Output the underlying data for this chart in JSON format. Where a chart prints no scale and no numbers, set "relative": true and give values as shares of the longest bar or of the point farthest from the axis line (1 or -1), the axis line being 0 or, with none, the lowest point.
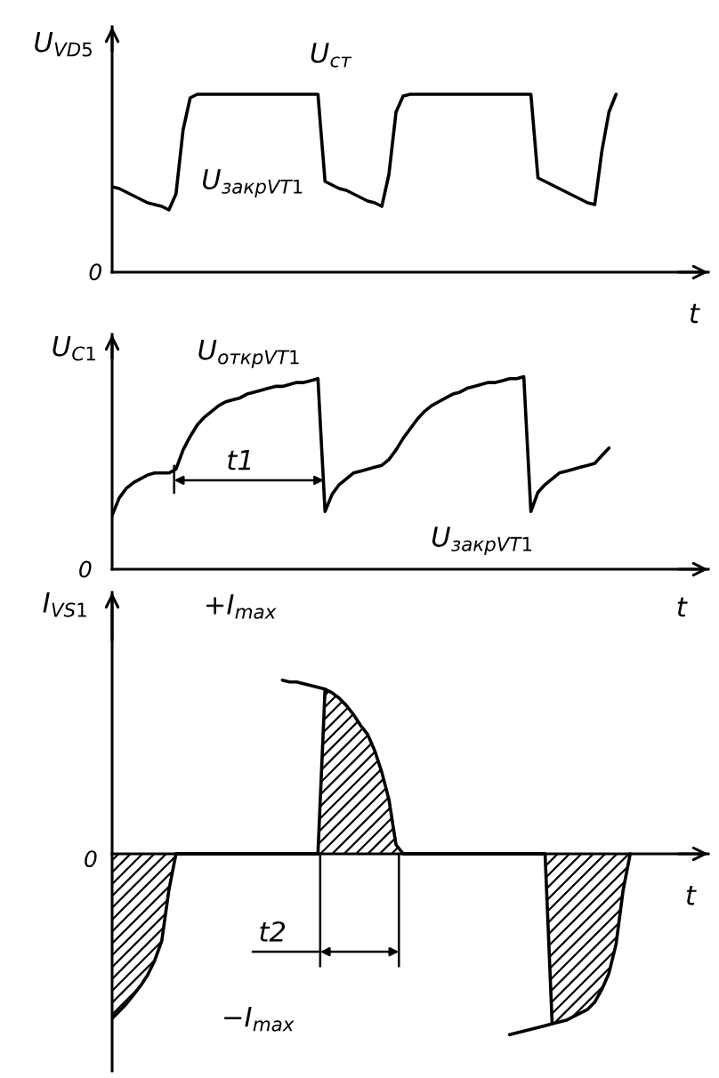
{
  "chart_data": [
    {
      "type": "line",
      "relative": true,
      "ylabel": "U$_{VD5}$",
      "xlabel": "t",
      "categories": [
        null,
        null,
        null,
        null,
        null,
        null,
        null,
        null,
        null,
        null,
        null,
        null,
        null,
        null,
        null,
        null,
        null,
        null,
        null,
        null,
        null,
        null,
        null,
        null,
        null,
        null,
        null,
        null,
        null,
        null,
        null,
        null,
        null,
        null,
        null,
        null,
        null,
        null,
        null,
        null,
        null,
        null,
        null,
        null,
        null,
        null,
        null,
        null,
        null,
        null,
        null,
        null,
        null,
        null,
        null,
        null,
        null,
        null,
        null,
        null,
        null,
        null,
        null,
        null,
        null,
        null,
        null,
        null,
        null,
        null,
        null,
        null,
        null,
        null,
        null,
        null,
        null,
        null,
        null,
        null,
        null,
        null,
        null,
        null,
        null
      ],
      "series": [
        {
          "color": "#000000",
          "values": [
            0.48,
            0.47,
            0.45,
            0.43,
            0.41,
            0.39,
            0.38,
            0.37,
            0.35,
            0.44,
            0.8,
            0.98,
            1.0,
            1.0,
            1.0,
            1.0,
            1.0,
            1.0,
            1.0,
            1.0,
            1.0,
            1.0,
            1.0,
            1.0,
            1.0,
            1.0,
            1.0,
            1.0,
            1.0,
            1.0,
            0.51,
            0.49,
            0.47,
            0.46,
            0.44,
            0.42,
            0.4,
            0.39,
            0.37,
            0.55,
            0.9,
            0.99,
            1.0,
            1.0,
            1.0,
            1.0,
            1.0,
            1.0,
            1.0,
            1.0,
            1.0,
            1.0,
            1.0,
            1.0,
            1.0,
            1.0,
            1.0,
            1.0,
            1.0,
            1.0,
            0.53,
            0.51,
            0.49,
            0.47,
            0.45,
            0.43,
            0.41,
            0.39,
            0.38,
            0.68,
            0.9,
            1.0,
            null,
            null,
            null,
            null,
            null,
            null,
            null,
            null,
            null,
            null,
            null,
            null,
            null
          ]
        }
      ],
      "annotations": [
        "U$_{ст}$",
        "U$_{закрVT1}$",
        "0"
      ]
    },
    {
      "type": "line",
      "relative": true,
      "ylabel": "U$_{C1}$",
      "xlabel": "t",
      "categories": [
        null,
        null,
        null,
        null,
        null,
        null,
        null,
        null,
        null,
        null,
        null,
        null,
        null,
        null,
        null,
        null,
        null,
        null,
        null,
        null,
        null,
        null,
        null,
        null,
        null,
        null,
        null,
        null,
        null,
        null,
        null,
        null,
        null,
        null,
        null,
        null,
        null,
        null,
        null,
        null,
        null,
        null,
        null,
        null,
        null,
        null,
        null,
        null,
        null,
        null,
        null,
        null,
        null,
        null,
        null,
        null,
        null,
        null,
        null,
        null,
        null,
        null,
        null,
        null,
        null,
        null,
        null,
        null,
        null,
        null,
        null,
        null,
        null,
        null,
        null,
        null,
        null,
        null,
        null,
        null,
        null,
        null,
        null,
        null,
        null
      ],
      "series": [
        {
          "color": "#000000",
          "values": [
            0.28,
            0.37,
            0.42,
            0.45,
            0.47,
            0.49,
            0.5,
            0.5,
            0.5,
            0.52,
            0.62,
            0.69,
            0.75,
            0.79,
            0.82,
            0.85,
            0.87,
            0.88,
            0.89,
            0.91,
            0.92,
            0.93,
            0.94,
            0.95,
            0.95,
            0.96,
            0.97,
            0.97,
            0.98,
            0.99,
            0.3,
            0.39,
            0.44,
            0.47,
            0.5,
            0.51,
            0.52,
            0.53,
            0.54,
            0.57,
            0.62,
            0.68,
            0.73,
            0.78,
            0.82,
            0.85,
            0.87,
            0.89,
            0.91,
            0.92,
            0.94,
            0.95,
            0.96,
            0.97,
            0.97,
            0.98,
            0.99,
            0.99,
            1.0,
            0.3,
            0.4,
            0.44,
            0.47,
            0.5,
            0.51,
            0.52,
            0.53,
            0.54,
            0.55,
            0.59,
            0.63,
            null,
            null,
            null,
            null,
            null,
            null,
            null,
            null,
            null,
            null,
            null,
            null,
            null,
            null
          ]
        }
      ],
      "annotations": [
        "U$_{открVT1}$",
        "t1",
        "U$_{закрVT1}$",
        "0"
      ]
    },
    {
      "type": "area",
      "relative": true,
      "ylabel": "I$_{VS1}$",
      "xlabel": "t",
      "categories": [
        null,
        null,
        null,
        null,
        null,
        null,
        null,
        null,
        null,
        null,
        null,
        null,
        null,
        null,
        null,
        null,
        null,
        null,
        null,
        null,
        null,
        null,
        null,
        null,
        null,
        null,
        null,
        null,
        null,
        null,
        null,
        null,
        null,
        null,
        null,
        null,
        null,
        null,
        null,
        null,
        null,
        null,
        null,
        null,
        null,
        null,
        null,
        null,
        null,
        null,
        null,
        null,
        null,
        null,
        null,
        null,
        null,
        null,
        null,
        null,
        null,
        null,
        null,
        null,
        null,
        null,
        null,
        null,
        null,
        null,
        null,
        null,
        null,
        null,
        null,
        null,
        null,
        null,
        null,
        null,
        null,
        null,
        null,
        null,
        null
      ],
      "series": [
        {
          "color": "#000000",
          "values": [
            -0.91,
            -0.87,
            -0.83,
            -0.78,
            -0.73,
            -0.67,
            -0.59,
            -0.48,
            -0.2,
            0,
            0,
            0,
            0,
            0,
            0,
            0,
            0,
            0,
            0,
            0,
            0,
            0,
            0,
            0,
            0,
            0,
            0,
            0,
            0,
            0,
            0.91,
            0.89,
            0.86,
            0.82,
            0.77,
            0.71,
            0.66,
            0.57,
            0.45,
            0.3,
            0.05,
            0,
            0,
            0,
            0,
            0,
            0,
            0,
            0,
            0,
            0,
            0,
            0,
            0,
            0,
            0,
            0,
            0,
            0,
            0,
            0,
            0,
            -0.94,
            -0.93,
            -0.92,
            -0.9,
            -0.88,
            -0.86,
            -0.82,
            -0.75,
            -0.66,
            -0.5,
            -0.2,
            0,
            null,
            null,
            null,
            null,
            null,
            null,
            null,
            null,
            null,
            null,
            null
          ]
        },
        {
          "type": "line",
          "color": "#000000",
          "values": [
            null,
            null,
            null,
            null,
            null,
            null,
            null,
            null,
            null,
            null,
            null,
            null,
            null,
            null,
            null,
            null,
            null,
            null,
            null,
            null,
            null,
            null,
            null,
            null,
            0.96,
            0.95,
            0.95,
            0.94,
            0.93,
            0.92,
            0.91,
            null,
            null,
            null,
            null,
            null,
            null,
            null,
            null,
            null,
            null,
            null,
            null,
            null,
            null,
            null,
            null,
            null,
            null,
            null,
            null,
            null,
            null,
            null,
            null,
            null,
            -1.0,
            -0.99,
            -0.98,
            -0.97,
            -0.96,
            -0.95,
            -0.94,
            null,
            null,
            null,
            null,
            null,
            null,
            null,
            null,
            null,
            null,
            null,
            null,
            null,
            null,
            null,
            null,
            null,
            null,
            null,
            null,
            null,
            null
          ]
        }
      ],
      "annotations": [
        "+I$_{max}$",
        "t2",
        "−I$_{max}$",
        "0"
      ]
    }
  ]
}
